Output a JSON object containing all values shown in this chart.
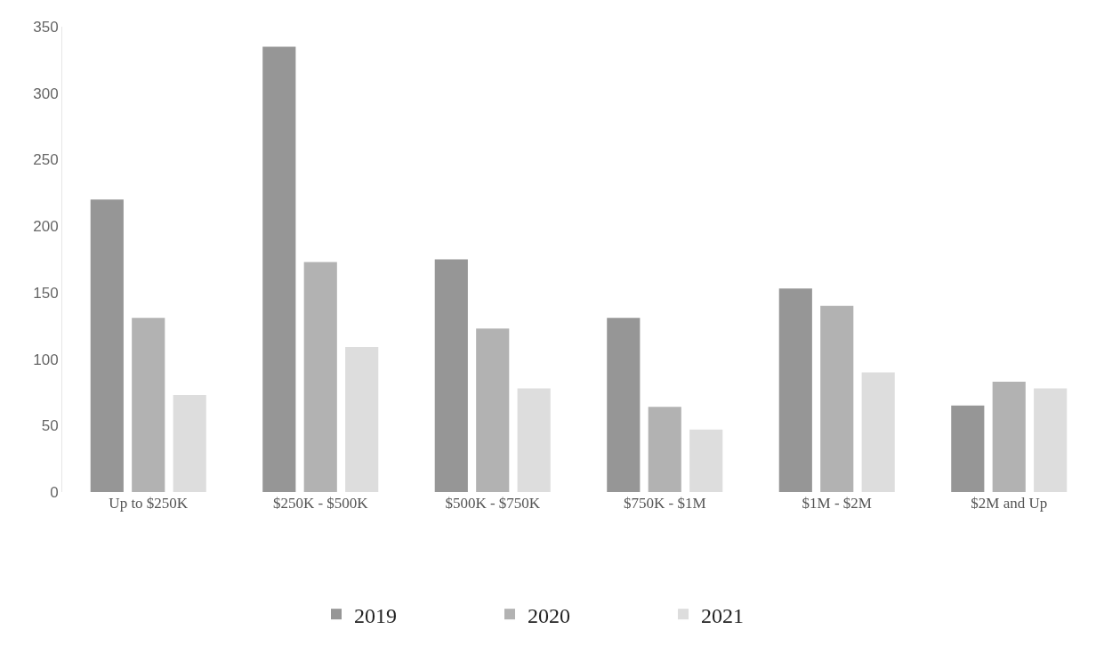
{
  "chart_data": {
    "type": "bar",
    "categories": [
      "Up to $250K",
      "$250K - $500K",
      "$500K - $750K",
      "$750K - $1M",
      "$1M - $2M",
      "$2M and Up"
    ],
    "series": [
      {
        "name": "2019",
        "color": "#969696",
        "values": [
          220,
          335,
          175,
          131,
          153,
          65
        ]
      },
      {
        "name": "2020",
        "color": "#b2b2b2",
        "values": [
          131,
          173,
          123,
          64,
          140,
          83
        ]
      },
      {
        "name": "2021",
        "color": "#dddddd",
        "values": [
          73,
          109,
          78,
          47,
          90,
          78
        ]
      }
    ],
    "ylim": [
      0,
      350
    ],
    "yticks": [
      0,
      50,
      100,
      150,
      200,
      250,
      300,
      350
    ],
    "grid": false,
    "legend": "bottom"
  }
}
